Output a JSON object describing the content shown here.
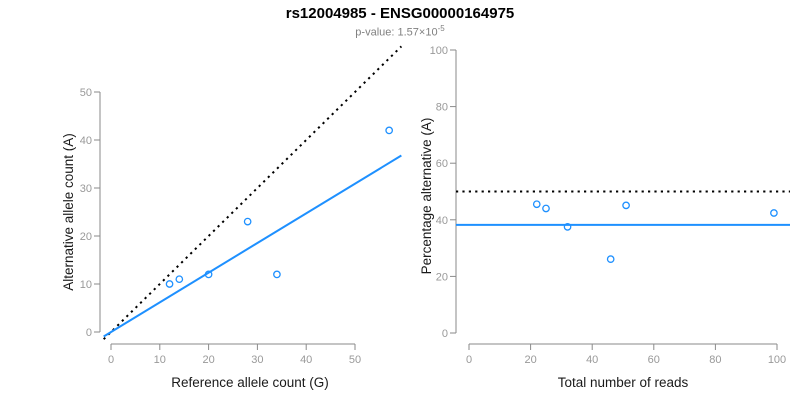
{
  "title": "rs12004985 - ENSG00000164975",
  "subtitle": {
    "prefix": "p-value: 1.57×10",
    "exponent": "-5"
  },
  "colors": {
    "accent_blue": "#1E90FF",
    "dotted_black": "#000000",
    "axis_gray": "#8a8a8a",
    "tick_label_gray": "#999999",
    "title_black": "#000000",
    "subtitle_gray": "#808080",
    "background": "#ffffff"
  },
  "chart_data": [
    {
      "type": "scatter",
      "id": "left",
      "xlabel": "Reference allele count (G)",
      "ylabel": "Alternative allele count (A)",
      "x_ticks": [
        0,
        10,
        20,
        30,
        40,
        50
      ],
      "y_ticks": [
        0,
        10,
        20,
        30,
        40,
        50
      ],
      "xlim": [
        -1.5,
        59.5
      ],
      "ylim": [
        -1.5,
        59.5
      ],
      "grid": false,
      "legend": false,
      "marker": "open-circle",
      "points": [
        [
          12,
          10
        ],
        [
          14,
          11
        ],
        [
          20,
          12
        ],
        [
          28,
          23
        ],
        [
          34,
          12
        ],
        [
          57,
          42
        ]
      ],
      "lines": [
        {
          "name": "identity-dotted-line",
          "style": "dotted",
          "color": "#000000",
          "from": [
            -1.5,
            -1.5
          ],
          "to": [
            59.5,
            59.5
          ]
        },
        {
          "name": "fitted-ratio-line",
          "style": "solid",
          "color": "#1E90FF",
          "slope": 0.618,
          "from": [
            -1.5,
            -0.93
          ],
          "to": [
            59.5,
            36.77
          ]
        }
      ]
    },
    {
      "type": "scatter",
      "id": "right",
      "xlabel": "Total number of reads",
      "ylabel": "Percentage alternative (A)",
      "x_ticks": [
        0,
        20,
        40,
        60,
        80,
        100
      ],
      "y_ticks": [
        0,
        20,
        40,
        60,
        80,
        100
      ],
      "xlim": [
        -4,
        104
      ],
      "ylim": [
        -4,
        104
      ],
      "grid": false,
      "legend": false,
      "marker": "open-circle",
      "points": [
        [
          22,
          45.5
        ],
        [
          25,
          44
        ],
        [
          32,
          37.5
        ],
        [
          46,
          26.1
        ],
        [
          51,
          45.1
        ],
        [
          99,
          42.4
        ]
      ],
      "lines": [
        {
          "name": "expected-50pct-dotted-line",
          "style": "dotted",
          "color": "#000000",
          "y": 50
        },
        {
          "name": "fitted-percentage-line",
          "style": "solid",
          "color": "#1E90FF",
          "y": 38.2
        }
      ]
    }
  ]
}
